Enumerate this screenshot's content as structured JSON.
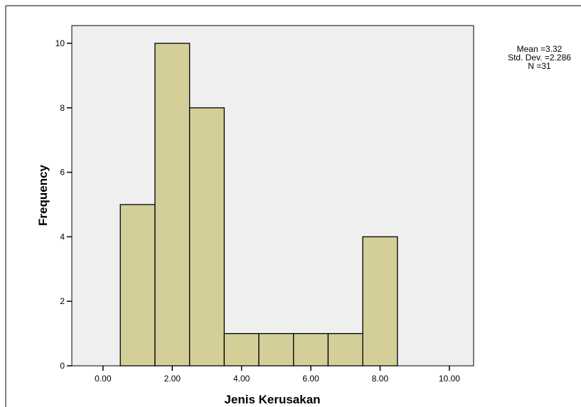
{
  "chart_data": {
    "type": "bar",
    "subtype": "histogram",
    "xlabel": "Jenis Kerusakan",
    "ylabel": "Frequency",
    "x_ticks": [
      "0.00",
      "2.00",
      "4.00",
      "6.00",
      "8.00",
      "10.00"
    ],
    "x_tick_values": [
      0,
      2,
      4,
      6,
      8,
      10
    ],
    "y_ticks": [
      0,
      2,
      4,
      6,
      8,
      10
    ],
    "xlim": [
      -0.9,
      10.7
    ],
    "ylim": [
      0,
      10.55
    ],
    "bins": [
      {
        "from": 0.5,
        "to": 1.5,
        "value": 5
      },
      {
        "from": 1.5,
        "to": 2.5,
        "value": 10
      },
      {
        "from": 2.5,
        "to": 3.5,
        "value": 8
      },
      {
        "from": 3.5,
        "to": 4.5,
        "value": 1
      },
      {
        "from": 4.5,
        "to": 5.5,
        "value": 1
      },
      {
        "from": 5.5,
        "to": 6.5,
        "value": 1
      },
      {
        "from": 6.5,
        "to": 7.5,
        "value": 1
      },
      {
        "from": 7.5,
        "to": 8.5,
        "value": 4
      }
    ],
    "bar_color": "#d4cf99",
    "plot_background": "#efefef",
    "grid": false,
    "stats": {
      "mean": "Mean =3.32",
      "std": "Std. Dev. =2.286",
      "n": "N =31"
    }
  }
}
